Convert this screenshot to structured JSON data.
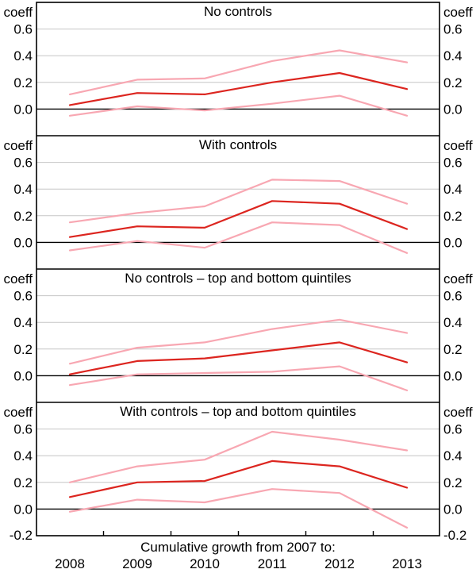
{
  "chart_data": {
    "type": "line",
    "title": "",
    "x": [
      2008,
      2009,
      2010,
      2011,
      2012,
      2013
    ],
    "xlabel": "Cumulative growth from 2007 to:",
    "ylabel_left": "coeff",
    "ylabel_right": "coeff",
    "ylim": [
      -0.2,
      0.8
    ],
    "yticks": [
      0.0,
      0.2,
      0.4,
      0.6
    ],
    "bottom_tick": -0.2,
    "grid": true,
    "legend_position": "none",
    "panels": [
      {
        "title": "No controls",
        "series": [
          {
            "name": "coefficient",
            "role": "center",
            "values": [
              0.03,
              0.12,
              0.11,
              0.2,
              0.27,
              0.15
            ]
          },
          {
            "name": "upper-confidence-band",
            "role": "band",
            "values": [
              0.11,
              0.22,
              0.23,
              0.36,
              0.44,
              0.35
            ]
          },
          {
            "name": "lower-confidence-band",
            "role": "band",
            "values": [
              -0.05,
              0.02,
              -0.01,
              0.04,
              0.1,
              -0.05
            ]
          }
        ]
      },
      {
        "title": "With controls",
        "series": [
          {
            "name": "coefficient",
            "role": "center",
            "values": [
              0.04,
              0.12,
              0.11,
              0.31,
              0.29,
              0.1
            ]
          },
          {
            "name": "upper-confidence-band",
            "role": "band",
            "values": [
              0.15,
              0.22,
              0.27,
              0.47,
              0.46,
              0.29
            ]
          },
          {
            "name": "lower-confidence-band",
            "role": "band",
            "values": [
              -0.06,
              0.01,
              -0.04,
              0.15,
              0.13,
              -0.08
            ]
          }
        ]
      },
      {
        "title": "No controls – top and bottom quintiles",
        "series": [
          {
            "name": "coefficient",
            "role": "center",
            "values": [
              0.01,
              0.11,
              0.13,
              0.19,
              0.25,
              0.1
            ]
          },
          {
            "name": "upper-confidence-band",
            "role": "band",
            "values": [
              0.09,
              0.21,
              0.25,
              0.35,
              0.42,
              0.32
            ]
          },
          {
            "name": "lower-confidence-band",
            "role": "band",
            "values": [
              -0.07,
              0.01,
              0.02,
              0.03,
              0.07,
              -0.11
            ]
          }
        ]
      },
      {
        "title": "With controls – top and bottom quintiles",
        "series": [
          {
            "name": "coefficient",
            "role": "center",
            "values": [
              0.09,
              0.2,
              0.21,
              0.36,
              0.32,
              0.16
            ]
          },
          {
            "name": "upper-confidence-band",
            "role": "band",
            "values": [
              0.2,
              0.32,
              0.37,
              0.58,
              0.52,
              0.44
            ]
          },
          {
            "name": "lower-confidence-band",
            "role": "band",
            "values": [
              -0.02,
              0.07,
              0.05,
              0.15,
              0.12,
              -0.14
            ]
          }
        ]
      }
    ],
    "colors": {
      "center_line": "#dc251f",
      "band_line": "#f8a7b2",
      "gridline": "#c6c6c6",
      "zero_line": "#000000",
      "frame": "#000000",
      "background": "#ffffff"
    }
  }
}
